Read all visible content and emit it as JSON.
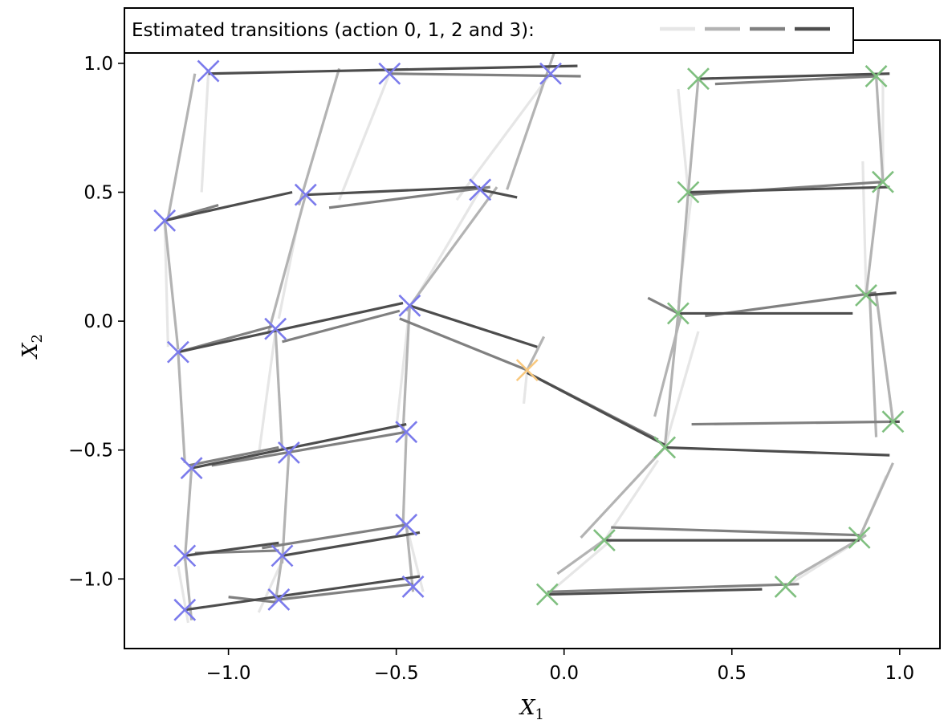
{
  "chart_data": {
    "type": "scatter",
    "title": "",
    "xlabel": "X",
    "xlabel_sub": "1",
    "ylabel": "X",
    "ylabel_sub": "2",
    "xlim": [
      -1.31,
      1.12
    ],
    "ylim": [
      -1.27,
      1.09
    ],
    "xticks": [
      -1.0,
      -0.5,
      0.0,
      0.5,
      1.0
    ],
    "xtick_labels": [
      "−1.0",
      "−0.5",
      "0.0",
      "0.5",
      "1.0"
    ],
    "yticks": [
      1.0,
      0.5,
      0.0,
      -0.5,
      -1.0
    ],
    "ytick_labels": [
      "1.0",
      "0.5",
      "0.0",
      "−0.5",
      "−1.0"
    ],
    "grid": false,
    "legend": {
      "text": "Estimated transitions (action 0, 1, 2 and 3):",
      "placement": "top-left, above axes",
      "action_colors": [
        "#e6e6e6",
        "#b3b3b3",
        "#808080",
        "#4d4d4d"
      ]
    },
    "marker_colors": {
      "blue": "#7b7bec",
      "orange": "#f9c97f",
      "green": "#7fbf7f"
    },
    "markers": [
      {
        "x": -1.06,
        "y": 0.97,
        "c": "blue"
      },
      {
        "x": -0.52,
        "y": 0.96,
        "c": "blue"
      },
      {
        "x": -0.04,
        "y": 0.96,
        "c": "blue"
      },
      {
        "x": -1.19,
        "y": 0.39,
        "c": "blue"
      },
      {
        "x": -0.77,
        "y": 0.49,
        "c": "blue"
      },
      {
        "x": -0.25,
        "y": 0.51,
        "c": "blue"
      },
      {
        "x": -1.15,
        "y": -0.12,
        "c": "blue"
      },
      {
        "x": -0.86,
        "y": -0.03,
        "c": "blue"
      },
      {
        "x": -0.46,
        "y": 0.06,
        "c": "blue"
      },
      {
        "x": -1.11,
        "y": -0.57,
        "c": "blue"
      },
      {
        "x": -0.82,
        "y": -0.51,
        "c": "blue"
      },
      {
        "x": -0.47,
        "y": -0.43,
        "c": "blue"
      },
      {
        "x": -1.13,
        "y": -0.91,
        "c": "blue"
      },
      {
        "x": -0.84,
        "y": -0.91,
        "c": "blue"
      },
      {
        "x": -0.47,
        "y": -0.79,
        "c": "blue"
      },
      {
        "x": -1.13,
        "y": -1.12,
        "c": "blue"
      },
      {
        "x": -0.85,
        "y": -1.08,
        "c": "blue"
      },
      {
        "x": -0.45,
        "y": -1.03,
        "c": "blue"
      },
      {
        "x": -0.11,
        "y": -0.19,
        "c": "orange"
      },
      {
        "x": 0.4,
        "y": 0.94,
        "c": "green"
      },
      {
        "x": 0.93,
        "y": 0.95,
        "c": "green"
      },
      {
        "x": 0.37,
        "y": 0.5,
        "c": "green"
      },
      {
        "x": 0.95,
        "y": 0.54,
        "c": "green"
      },
      {
        "x": 0.34,
        "y": 0.03,
        "c": "green"
      },
      {
        "x": 0.9,
        "y": 0.1,
        "c": "green"
      },
      {
        "x": 0.98,
        "y": -0.39,
        "c": "green"
      },
      {
        "x": 0.3,
        "y": -0.49,
        "c": "green"
      },
      {
        "x": 0.12,
        "y": -0.85,
        "c": "green"
      },
      {
        "x": 0.88,
        "y": -0.84,
        "c": "green"
      },
      {
        "x": -0.05,
        "y": -1.06,
        "c": "green"
      },
      {
        "x": 0.66,
        "y": -1.03,
        "c": "green"
      }
    ],
    "transitions": [
      {
        "a": 3,
        "x1": -1.06,
        "y1": 0.96,
        "x2": 0.04,
        "y2": 0.99
      },
      {
        "a": 2,
        "x1": -0.52,
        "y1": 0.96,
        "x2": 0.05,
        "y2": 0.95
      },
      {
        "a": 0,
        "x1": -1.06,
        "y1": 0.96,
        "x2": -1.08,
        "y2": 0.5
      },
      {
        "a": 1,
        "x1": -1.1,
        "y1": 0.96,
        "x2": -1.18,
        "y2": 0.4
      },
      {
        "a": 1,
        "x1": -0.67,
        "y1": 0.98,
        "x2": -0.79,
        "y2": 0.45
      },
      {
        "a": 0,
        "x1": -0.52,
        "y1": 0.96,
        "x2": -0.67,
        "y2": 0.47
      },
      {
        "a": 0,
        "x1": -0.04,
        "y1": 0.96,
        "x2": -0.32,
        "y2": 0.47
      },
      {
        "a": 1,
        "x1": -0.03,
        "y1": 1.04,
        "x2": -0.17,
        "y2": 0.51
      },
      {
        "a": 3,
        "x1": -1.19,
        "y1": 0.39,
        "x2": -0.81,
        "y2": 0.5
      },
      {
        "a": 2,
        "x1": -1.19,
        "y1": 0.39,
        "x2": -1.03,
        "y2": 0.45
      },
      {
        "a": 3,
        "x1": -0.77,
        "y1": 0.49,
        "x2": -0.25,
        "y2": 0.52
      },
      {
        "a": 2,
        "x1": -0.7,
        "y1": 0.44,
        "x2": -0.22,
        "y2": 0.52
      },
      {
        "a": 3,
        "x1": -0.25,
        "y1": 0.51,
        "x2": -0.14,
        "y2": 0.48
      },
      {
        "a": 0,
        "x1": -1.19,
        "y1": 0.39,
        "x2": -1.18,
        "y2": -0.1
      },
      {
        "a": 1,
        "x1": -1.19,
        "y1": 0.39,
        "x2": -1.15,
        "y2": -0.11
      },
      {
        "a": 1,
        "x1": -0.77,
        "y1": 0.49,
        "x2": -0.88,
        "y2": -0.04
      },
      {
        "a": 0,
        "x1": -0.79,
        "y1": 0.4,
        "x2": -0.85,
        "y2": 0.01
      },
      {
        "a": 0,
        "x1": -0.25,
        "y1": 0.51,
        "x2": -0.45,
        "y2": 0.07
      },
      {
        "a": 1,
        "x1": -0.2,
        "y1": 0.52,
        "x2": -0.47,
        "y2": 0.04
      },
      {
        "a": 3,
        "x1": -1.15,
        "y1": -0.12,
        "x2": -0.48,
        "y2": 0.07
      },
      {
        "a": 2,
        "x1": -1.15,
        "y1": -0.12,
        "x2": -0.87,
        "y2": -0.02
      },
      {
        "a": 2,
        "x1": -0.84,
        "y1": -0.08,
        "x2": -0.49,
        "y2": 0.04
      },
      {
        "a": 3,
        "x1": -0.46,
        "y1": 0.06,
        "x2": -0.08,
        "y2": -0.1
      },
      {
        "a": 2,
        "x1": -0.49,
        "y1": 0.01,
        "x2": -0.11,
        "y2": -0.19
      },
      {
        "a": 2,
        "x1": -0.11,
        "y1": -0.2,
        "x2": 0.28,
        "y2": -0.46
      },
      {
        "a": 3,
        "x1": -0.11,
        "y1": -0.2,
        "x2": 0.3,
        "y2": -0.48
      },
      {
        "a": 1,
        "x1": -0.11,
        "y1": -0.19,
        "x2": -0.06,
        "y2": -0.06
      },
      {
        "a": 0,
        "x1": -0.11,
        "y1": -0.19,
        "x2": -0.12,
        "y2": -0.32
      },
      {
        "a": 1,
        "x1": -1.15,
        "y1": -0.12,
        "x2": -1.13,
        "y2": -0.55
      },
      {
        "a": 1,
        "x1": -0.86,
        "y1": -0.03,
        "x2": -0.84,
        "y2": -0.5
      },
      {
        "a": 0,
        "x1": -0.86,
        "y1": -0.04,
        "x2": -0.91,
        "y2": -0.52
      },
      {
        "a": 1,
        "x1": -0.46,
        "y1": 0.06,
        "x2": -0.48,
        "y2": -0.43
      },
      {
        "a": 0,
        "x1": -0.46,
        "y1": 0.06,
        "x2": -0.5,
        "y2": -0.42
      },
      {
        "a": 3,
        "x1": -1.11,
        "y1": -0.57,
        "x2": -0.47,
        "y2": -0.4
      },
      {
        "a": 2,
        "x1": -1.12,
        "y1": -0.56,
        "x2": -0.85,
        "y2": -0.49
      },
      {
        "a": 2,
        "x1": -1.05,
        "y1": -0.56,
        "x2": -0.47,
        "y2": -0.43
      },
      {
        "a": 1,
        "x1": -1.11,
        "y1": -0.57,
        "x2": -1.13,
        "y2": -0.93
      },
      {
        "a": 1,
        "x1": -0.82,
        "y1": -0.51,
        "x2": -0.84,
        "y2": -0.94
      },
      {
        "a": 1,
        "x1": -0.47,
        "y1": -0.43,
        "x2": -0.48,
        "y2": -0.8
      },
      {
        "a": 3,
        "x1": -1.13,
        "y1": -0.91,
        "x2": -0.85,
        "y2": -0.86
      },
      {
        "a": 2,
        "x1": -1.1,
        "y1": -0.9,
        "x2": -0.85,
        "y2": -0.89
      },
      {
        "a": 3,
        "x1": -0.84,
        "y1": -0.91,
        "x2": -0.43,
        "y2": -0.82
      },
      {
        "a": 2,
        "x1": -0.9,
        "y1": -0.88,
        "x2": -0.47,
        "y2": -0.79
      },
      {
        "a": 0,
        "x1": -0.47,
        "y1": -0.79,
        "x2": -0.42,
        "y2": -1.05
      },
      {
        "a": 1,
        "x1": -1.13,
        "y1": -0.91,
        "x2": -1.11,
        "y2": -1.16
      },
      {
        "a": 0,
        "x1": -1.15,
        "y1": -0.95,
        "x2": -1.12,
        "y2": -1.17
      },
      {
        "a": 1,
        "x1": -0.84,
        "y1": -0.91,
        "x2": -0.86,
        "y2": -1.09
      },
      {
        "a": 0,
        "x1": -0.84,
        "y1": -0.93,
        "x2": -0.91,
        "y2": -1.13
      },
      {
        "a": 1,
        "x1": -0.47,
        "y1": -0.79,
        "x2": -0.45,
        "y2": -1.05
      },
      {
        "a": 3,
        "x1": -1.13,
        "y1": -1.12,
        "x2": -0.43,
        "y2": -0.99
      },
      {
        "a": 2,
        "x1": -1.0,
        "y1": -1.07,
        "x2": -0.86,
        "y2": -1.09
      },
      {
        "a": 2,
        "x1": -0.85,
        "y1": -1.08,
        "x2": -0.45,
        "y2": -1.02
      },
      {
        "a": 3,
        "x1": -0.05,
        "y1": -1.06,
        "x2": 0.59,
        "y2": -1.04
      },
      {
        "a": 2,
        "x1": -0.05,
        "y1": -1.05,
        "x2": 0.7,
        "y2": -1.02
      },
      {
        "a": 0,
        "x1": -0.05,
        "y1": -1.06,
        "x2": 0.14,
        "y2": -0.85
      },
      {
        "a": 1,
        "x1": -0.02,
        "y1": -0.98,
        "x2": 0.14,
        "y2": -0.83
      },
      {
        "a": 0,
        "x1": 0.66,
        "y1": -1.03,
        "x2": 0.89,
        "y2": -0.84
      },
      {
        "a": 1,
        "x1": 0.69,
        "y1": -0.99,
        "x2": 0.9,
        "y2": -0.83
      },
      {
        "a": 3,
        "x1": 0.12,
        "y1": -0.85,
        "x2": 0.88,
        "y2": -0.85
      },
      {
        "a": 2,
        "x1": 0.14,
        "y1": -0.8,
        "x2": 0.88,
        "y2": -0.83
      },
      {
        "a": 1,
        "x1": 0.05,
        "y1": -0.84,
        "x2": 0.3,
        "y2": -0.49
      },
      {
        "a": 0,
        "x1": 0.12,
        "y1": -0.85,
        "x2": 0.28,
        "y2": -0.54
      },
      {
        "a": 1,
        "x1": 0.88,
        "y1": -0.84,
        "x2": 0.98,
        "y2": -0.55
      },
      {
        "a": 0,
        "x1": 0.88,
        "y1": -0.84,
        "x2": 0.96,
        "y2": -0.6
      },
      {
        "a": 3,
        "x1": 0.3,
        "y1": -0.49,
        "x2": 0.97,
        "y2": -0.52
      },
      {
        "a": 2,
        "x1": 0.38,
        "y1": -0.4,
        "x2": 0.98,
        "y2": -0.39
      },
      {
        "a": 3,
        "x1": 0.97,
        "y1": -0.39,
        "x2": 1.0,
        "y2": -0.39
      },
      {
        "a": 1,
        "x1": 0.3,
        "y1": -0.49,
        "x2": 0.34,
        "y2": 0.03
      },
      {
        "a": 0,
        "x1": 0.3,
        "y1": -0.49,
        "x2": 0.4,
        "y2": -0.04
      },
      {
        "a": 1,
        "x1": 0.27,
        "y1": -0.37,
        "x2": 0.35,
        "y2": 0.03
      },
      {
        "a": 1,
        "x1": 0.98,
        "y1": -0.39,
        "x2": 0.93,
        "y2": 0.1
      },
      {
        "a": 0,
        "x1": 0.98,
        "y1": -0.39,
        "x2": 0.93,
        "y2": 0.11
      },
      {
        "a": 1,
        "x1": 0.93,
        "y1": -0.45,
        "x2": 0.91,
        "y2": 0.12
      },
      {
        "a": 3,
        "x1": 0.34,
        "y1": 0.03,
        "x2": 0.86,
        "y2": 0.03
      },
      {
        "a": 2,
        "x1": 0.25,
        "y1": 0.09,
        "x2": 0.34,
        "y2": 0.03
      },
      {
        "a": 2,
        "x1": 0.42,
        "y1": 0.02,
        "x2": 0.93,
        "y2": 0.11
      },
      {
        "a": 3,
        "x1": 0.9,
        "y1": 0.1,
        "x2": 0.99,
        "y2": 0.11
      },
      {
        "a": 1,
        "x1": 0.34,
        "y1": 0.03,
        "x2": 0.37,
        "y2": 0.5
      },
      {
        "a": 0,
        "x1": 0.34,
        "y1": 0.07,
        "x2": 0.38,
        "y2": 0.49
      },
      {
        "a": 1,
        "x1": 0.9,
        "y1": 0.1,
        "x2": 0.94,
        "y2": 0.54
      },
      {
        "a": 0,
        "x1": 0.9,
        "y1": 0.1,
        "x2": 0.89,
        "y2": 0.62
      },
      {
        "a": 3,
        "x1": 0.37,
        "y1": 0.5,
        "x2": 0.97,
        "y2": 0.52
      },
      {
        "a": 2,
        "x1": 0.37,
        "y1": 0.49,
        "x2": 0.95,
        "y2": 0.54
      },
      {
        "a": 1,
        "x1": 0.37,
        "y1": 0.5,
        "x2": 0.4,
        "y2": 0.94
      },
      {
        "a": 0,
        "x1": 0.37,
        "y1": 0.5,
        "x2": 0.34,
        "y2": 0.9
      },
      {
        "a": 1,
        "x1": 0.95,
        "y1": 0.54,
        "x2": 0.93,
        "y2": 0.95
      },
      {
        "a": 0,
        "x1": 0.95,
        "y1": 0.54,
        "x2": 0.95,
        "y2": 0.94
      },
      {
        "a": 3,
        "x1": 0.4,
        "y1": 0.94,
        "x2": 0.97,
        "y2": 0.96
      },
      {
        "a": 2,
        "x1": 0.45,
        "y1": 0.92,
        "x2": 0.93,
        "y2": 0.95
      }
    ]
  }
}
